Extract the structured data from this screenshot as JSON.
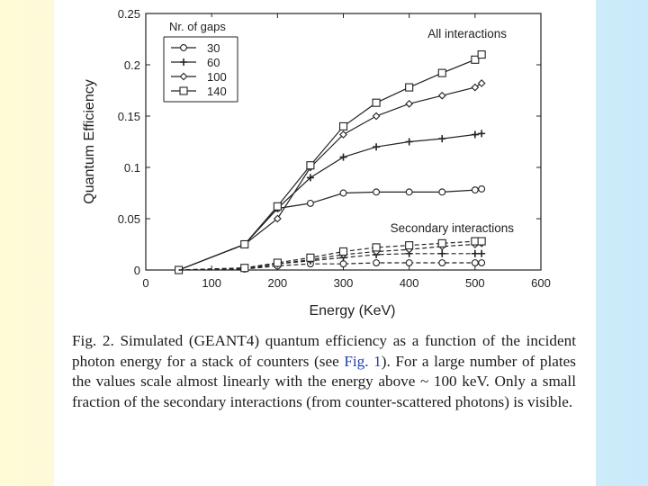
{
  "chart_data": {
    "type": "line",
    "title": "",
    "xlabel": "Energy (KeV)",
    "ylabel": "Quantum Efficiency",
    "xlim": [
      0,
      600
    ],
    "ylim": [
      0,
      0.25
    ],
    "xticks": [
      0,
      100,
      200,
      300,
      400,
      500,
      600
    ],
    "yticks": [
      0,
      0.05,
      0.1,
      0.15,
      0.2,
      0.25
    ],
    "xtick_labels": [
      "0",
      "100",
      "200",
      "300",
      "400",
      "500",
      "600"
    ],
    "ytick_labels": [
      "0",
      "0.05",
      "0.1",
      "0.15",
      "0.2",
      "0.25"
    ],
    "grid": false,
    "legend_title": "Nr. of gaps",
    "legend_position": "top-left",
    "annotations": {
      "all": "All interactions",
      "secondary": "Secondary interactions"
    },
    "x": [
      50,
      150,
      200,
      250,
      300,
      350,
      400,
      450,
      500,
      510
    ],
    "series": [
      {
        "name": "30",
        "group": "all",
        "marker": "circle",
        "style": "solid",
        "values": [
          0.0,
          0.025,
          0.06,
          0.065,
          0.075,
          0.076,
          0.076,
          0.076,
          0.078,
          0.079
        ]
      },
      {
        "name": "60",
        "group": "all",
        "marker": "plus",
        "style": "solid",
        "values": [
          0.0,
          0.025,
          0.06,
          0.09,
          0.11,
          0.12,
          0.125,
          0.128,
          0.132,
          0.133
        ]
      },
      {
        "name": "100",
        "group": "all",
        "marker": "diamond",
        "style": "solid",
        "values": [
          0.0,
          0.025,
          0.05,
          0.1,
          0.132,
          0.15,
          0.162,
          0.17,
          0.178,
          0.182
        ]
      },
      {
        "name": "140",
        "group": "all",
        "marker": "square",
        "style": "solid",
        "values": [
          0.0,
          0.025,
          0.062,
          0.102,
          0.14,
          0.163,
          0.178,
          0.192,
          0.205,
          0.21
        ]
      },
      {
        "name": "30",
        "group": "secondary",
        "marker": "circle",
        "style": "dashed",
        "values": [
          0.0,
          0.001,
          0.004,
          0.006,
          0.006,
          0.007,
          0.007,
          0.007,
          0.007,
          0.007
        ]
      },
      {
        "name": "60",
        "group": "secondary",
        "marker": "plus",
        "style": "dashed",
        "values": [
          0.0,
          0.001,
          0.006,
          0.009,
          0.012,
          0.015,
          0.016,
          0.016,
          0.016,
          0.016
        ]
      },
      {
        "name": "100",
        "group": "secondary",
        "marker": "diamond",
        "style": "dashed",
        "values": [
          0.0,
          0.002,
          0.006,
          0.01,
          0.015,
          0.018,
          0.02,
          0.023,
          0.025,
          0.026
        ]
      },
      {
        "name": "140",
        "group": "secondary",
        "marker": "square",
        "style": "dashed",
        "values": [
          0.0,
          0.002,
          0.007,
          0.012,
          0.018,
          0.022,
          0.024,
          0.026,
          0.028,
          0.028
        ]
      }
    ]
  },
  "caption": {
    "part1": "Fig. 2. Simulated (GEANT4) quantum efficiency as a function of the incident photon energy for a stack of counters (see ",
    "figref": "Fig. 1",
    "part2": "). For a large number of plates the values scale almost linearly with the energy above ~ 100 keV. Only a small fraction of the secondary interactions (from counter-scattered photons) is visible."
  }
}
